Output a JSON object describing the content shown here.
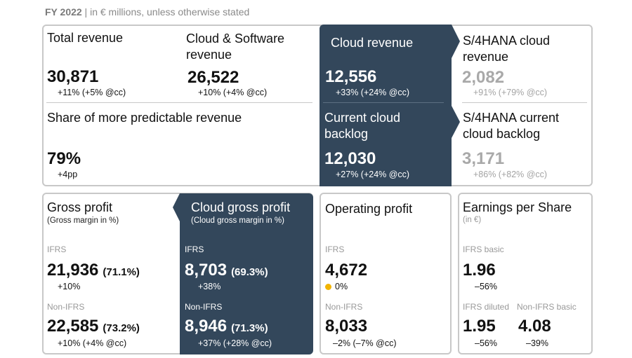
{
  "header": {
    "year": "FY 2022",
    "note": " | in € millions, unless otherwise stated"
  },
  "top": {
    "total_revenue": {
      "label": "Total revenue",
      "value": "30,871",
      "change": "+11% (+5% @cc)"
    },
    "cloud_software": {
      "label_line1": "Cloud & Software",
      "label_line2": "revenue",
      "value": "26,522",
      "change": "+10% (+4% @cc)"
    },
    "cloud_revenue": {
      "label": "Cloud revenue",
      "value": "12,556",
      "change": "+33% (+24% @cc)"
    },
    "s4_cloud_revenue": {
      "label_line1": "S/4HANA cloud",
      "label_line2": "revenue",
      "value": "2,082",
      "change": "+91% (+79% @cc)"
    },
    "predictable": {
      "label": "Share of more predictable revenue",
      "value": "79%",
      "change": "+4pp"
    },
    "current_cloud_backlog": {
      "label_line1": "Current cloud",
      "label_line2": "backlog",
      "value": "12,030",
      "change": "+27% (+24% @cc)"
    },
    "s4_backlog": {
      "label_line1": "S/4HANA current",
      "label_line2": "cloud backlog",
      "value": "3,171",
      "change": "+86% (+82% @cc)"
    }
  },
  "gross_profit": {
    "label": "Gross profit",
    "sub": "(Gross margin in %)",
    "ifrs_tag": "IFRS",
    "ifrs_value": "21,936",
    "ifrs_margin": "(71.1%)",
    "ifrs_change": "+10%",
    "non_tag": "Non-IFRS",
    "non_value": "22,585",
    "non_margin": "(73.2%)",
    "non_change": "+10% (+4% @cc)"
  },
  "cloud_gross_profit": {
    "label": "Cloud gross profit",
    "sub": "(Cloud gross margin in %)",
    "ifrs_tag": "IFRS",
    "ifrs_value": "8,703",
    "ifrs_margin": "(69.3%)",
    "ifrs_change": "+38%",
    "non_tag": "Non-IFRS",
    "non_value": "8,946",
    "non_margin": "(71.3%)",
    "non_change": "+37% (+28% @cc)"
  },
  "operating_profit": {
    "label": "Operating profit",
    "ifrs_tag": "IFRS",
    "ifrs_value": "4,672",
    "ifrs_change": "0%",
    "non_tag": "Non-IFRS",
    "non_value": "8,033",
    "non_change": "–2% (–7% @cc)"
  },
  "eps": {
    "label": "Earnings per Share",
    "sub": "(in €)",
    "basic_tag": "IFRS basic",
    "basic_value": "1.96",
    "basic_change": "–56%",
    "diluted_tag": "IFRS diluted",
    "diluted_value": "1.95",
    "diluted_change": "–56%",
    "non_tag": "Non-IFRS basic",
    "non_value": "4.08",
    "non_change": "–39%"
  },
  "colors": {
    "dark_panel": "#33475b",
    "dot": "#f2b400",
    "border": "#c8c8c8"
  }
}
